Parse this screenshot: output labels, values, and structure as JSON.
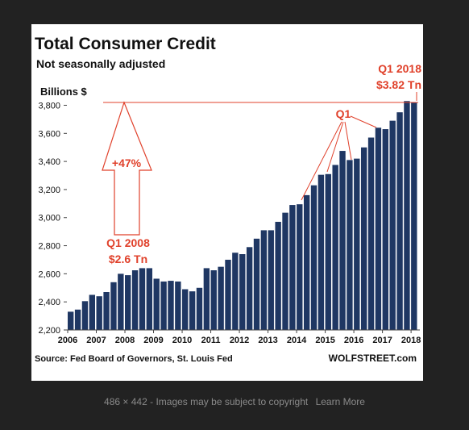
{
  "caption": {
    "dimensions": "486 × 442",
    "note": "Images may be subject to copyright",
    "learn_more": "Learn More"
  },
  "colors": {
    "bar": "#1f3763",
    "annotation": "#e0412b",
    "text": "#111111",
    "background": "#ffffff"
  },
  "chart_data": {
    "type": "bar",
    "title": "Total Consumer Credit",
    "subtitle": "Not seasonally adjusted",
    "ylabel": "Billions $",
    "ylim": [
      2200,
      3900
    ],
    "yticks": [
      2200,
      2400,
      2600,
      2800,
      3000,
      3200,
      3400,
      3600,
      3800
    ],
    "ytick_labels": [
      "2,200",
      "2,400",
      "2,600",
      "2,800",
      "3,000",
      "3,200",
      "3,400",
      "3,600",
      "3,800"
    ],
    "xtick_labels": [
      "2006",
      "2007",
      "2008",
      "2009",
      "2010",
      "2011",
      "2012",
      "2013",
      "2014",
      "2015",
      "2016",
      "2017",
      "2018"
    ],
    "frequency": "quarterly",
    "series": [
      {
        "values": [
          2330,
          2345,
          2405,
          2450,
          2440,
          2470,
          2540,
          2600,
          2590,
          2625,
          2640,
          2640,
          2565,
          2545,
          2550,
          2545,
          2490,
          2475,
          2500,
          2640,
          2625,
          2650,
          2700,
          2750,
          2740,
          2790,
          2850,
          2910,
          2910,
          2970,
          3035,
          3090,
          3095,
          3160,
          3230,
          3305,
          3310,
          3375,
          3475,
          3410,
          3420,
          3500,
          3570,
          3640,
          3630,
          3690,
          3750,
          3830,
          3820
        ]
      }
    ],
    "annotations": {
      "q1_2008_label": "Q1 2008",
      "q1_2008_value": "$2.6 Tn",
      "q1_2018_label": "Q1 2018",
      "q1_2018_value": "$3.82 Tn",
      "q1_label": "Q1",
      "change_label": "+47%"
    },
    "source": "Source: Fed Board of Governors, St. Louis Fed",
    "watermark": "WOLFSTREET.com",
    "grid": false
  }
}
